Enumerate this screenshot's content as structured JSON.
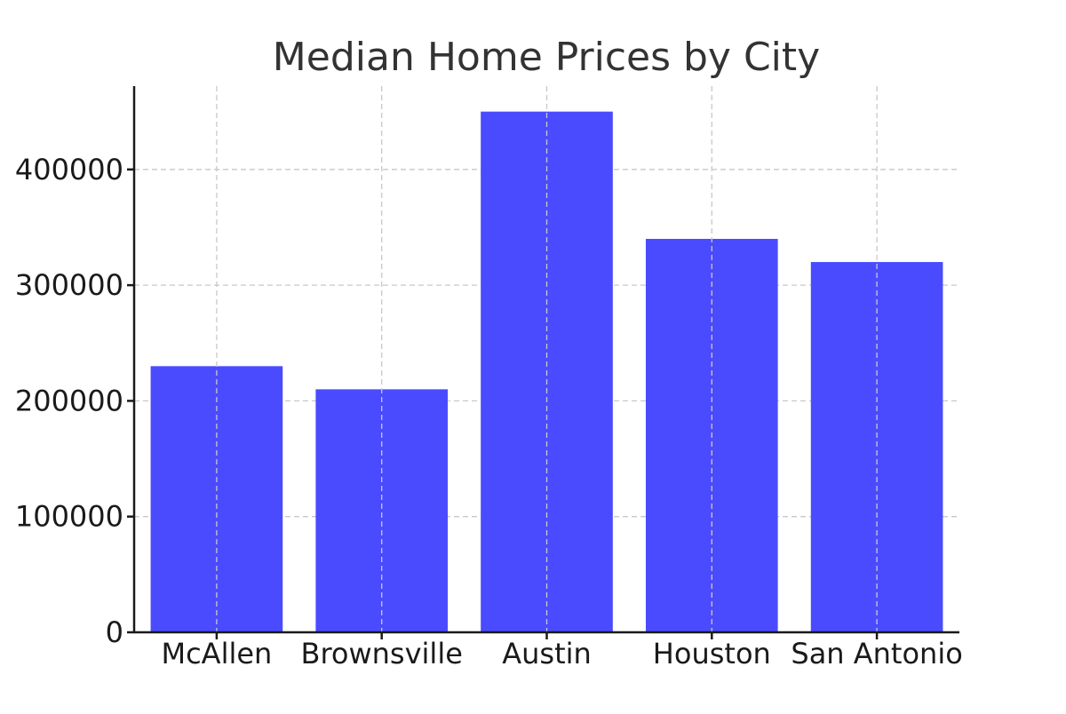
{
  "chart_data": {
    "type": "bar",
    "title": "Median Home Prices by City",
    "xlabel": "",
    "ylabel": "",
    "categories": [
      "McAllen",
      "Brownsville",
      "Austin",
      "Houston",
      "San Antonio"
    ],
    "values": [
      230000,
      210000,
      450000,
      340000,
      320000
    ],
    "ylim": [
      0,
      472000
    ],
    "yticks": [
      0,
      100000,
      200000,
      300000,
      400000
    ],
    "ytick_labels": [
      "0",
      "100000",
      "200000",
      "300000",
      "400000"
    ],
    "grid": true,
    "legend": "none",
    "bar_color": "#4a4bff"
  }
}
